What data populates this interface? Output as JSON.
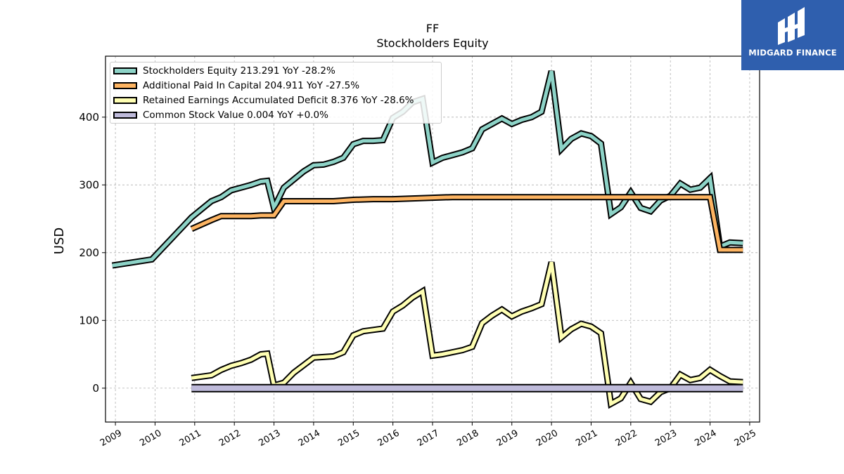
{
  "title": "FF",
  "subtitle": "Stockholders  Equity",
  "logo": {
    "text": "MIDGARD FINANCE",
    "bg": "#2f5fae",
    "icon": "midgard-logo-icon"
  },
  "chart_data": {
    "type": "line",
    "ylabel": "USD",
    "xlabel": "",
    "ylim": [
      -50,
      490
    ],
    "xlim": [
      2008.75,
      2025.25
    ],
    "yticks": [
      0,
      100,
      200,
      300,
      400
    ],
    "xticks": [
      "2009",
      "2010",
      "2011",
      "2012",
      "2013",
      "2014",
      "2015",
      "2016",
      "2017",
      "2018",
      "2019",
      "2020",
      "2021",
      "2022",
      "2023",
      "2024",
      "2025"
    ],
    "grid": true,
    "legend_position": "top-left",
    "series": [
      {
        "name": "Stockholders Equity",
        "legend": "Stockholders Equity  213.291 YoY -28.2%",
        "color": "#8dd3c7",
        "x": [
          2008.92,
          2009.92,
          2010.92,
          2011.17,
          2011.42,
          2011.67,
          2011.92,
          2012.17,
          2012.42,
          2012.67,
          2012.83,
          2013.0,
          2013.25,
          2013.5,
          2013.75,
          2014.0,
          2014.25,
          2014.5,
          2014.75,
          2015.0,
          2015.25,
          2015.5,
          2015.75,
          2016.0,
          2016.25,
          2016.5,
          2016.75,
          2017.0,
          2017.25,
          2017.5,
          2017.75,
          2018.0,
          2018.25,
          2018.5,
          2018.75,
          2019.0,
          2019.25,
          2019.5,
          2019.75,
          2020.0,
          2020.25,
          2020.5,
          2020.75,
          2021.0,
          2021.25,
          2021.5,
          2021.75,
          2022.0,
          2022.25,
          2022.5,
          2022.75,
          2023.0,
          2023.25,
          2023.5,
          2023.75,
          2024.0,
          2024.25,
          2024.5,
          2024.83
        ],
        "values": [
          181,
          190,
          252,
          264,
          276,
          282,
          292,
          296,
          300,
          305,
          306,
          266,
          296,
          308,
          320,
          329,
          330,
          334,
          340,
          360,
          365,
          365,
          366,
          399,
          408,
          422,
          427,
          333,
          340,
          344,
          348,
          354,
          382,
          390,
          398,
          390,
          396,
          400,
          408,
          468,
          353,
          368,
          376,
          372,
          361,
          257,
          267,
          289,
          266,
          261,
          277,
          284,
          302,
          293,
          296,
          310,
          209,
          215,
          214
        ]
      },
      {
        "name": "Additional Paid In Capital",
        "legend": "Additional Paid In Capital  204.911 YoY -27.5%",
        "color": "#fdb462",
        "x": [
          2010.92,
          2011.42,
          2011.67,
          2011.92,
          2012.17,
          2012.42,
          2012.67,
          2012.83,
          2013.0,
          2013.25,
          2013.5,
          2014.0,
          2014.5,
          2015.0,
          2015.5,
          2016.0,
          2016.5,
          2017.0,
          2017.5,
          2018.0,
          2018.5,
          2019.0,
          2019.5,
          2020.0,
          2020.5,
          2021.0,
          2021.5,
          2022.0,
          2022.5,
          2023.0,
          2023.5,
          2024.0,
          2024.25,
          2024.5,
          2024.83
        ],
        "values": [
          235,
          248,
          254,
          254,
          254,
          254,
          255,
          255,
          255,
          276,
          276,
          276,
          276,
          278,
          279,
          279,
          280,
          281,
          282,
          282,
          282,
          282,
          282,
          282,
          282,
          282,
          282,
          282,
          282,
          282,
          282,
          282,
          204,
          204,
          204
        ]
      },
      {
        "name": "Retained Earnings Accumulated Deficit",
        "legend": "Retained Earnings Accumulated Deficit  8.376 YoY -28.6%",
        "color": "#ffffb3",
        "x": [
          2010.92,
          2011.42,
          2011.67,
          2011.92,
          2012.17,
          2012.42,
          2012.67,
          2012.83,
          2013.0,
          2013.25,
          2013.5,
          2013.75,
          2014.0,
          2014.25,
          2014.5,
          2014.75,
          2015.0,
          2015.25,
          2015.5,
          2015.75,
          2016.0,
          2016.25,
          2016.5,
          2016.75,
          2017.0,
          2017.25,
          2017.5,
          2017.75,
          2018.0,
          2018.25,
          2018.5,
          2018.75,
          2019.0,
          2019.25,
          2019.5,
          2019.75,
          2020.0,
          2020.25,
          2020.5,
          2020.75,
          2021.0,
          2021.25,
          2021.5,
          2021.75,
          2022.0,
          2022.25,
          2022.5,
          2022.75,
          2023.0,
          2023.25,
          2023.5,
          2023.75,
          2024.0,
          2024.25,
          2024.5,
          2024.83
        ],
        "values": [
          15,
          19,
          27,
          33,
          37,
          42,
          50,
          51,
          4,
          8,
          23,
          34,
          45,
          46,
          47,
          53,
          78,
          84,
          86,
          88,
          113,
          122,
          134,
          143,
          48,
          50,
          53,
          56,
          61,
          96,
          107,
          116,
          106,
          113,
          118,
          124,
          186,
          75,
          87,
          95,
          91,
          81,
          -23,
          -15,
          8,
          -16,
          -20,
          -6,
          0,
          20,
          12,
          15,
          27,
          18,
          10,
          9
        ]
      },
      {
        "name": "Common Stock Value",
        "legend": "Common Stock Value  0.004 YoY +0.0%",
        "color": "#bebada",
        "x": [
          2010.92,
          2024.83
        ],
        "values": [
          0.004,
          0.004
        ]
      }
    ]
  }
}
